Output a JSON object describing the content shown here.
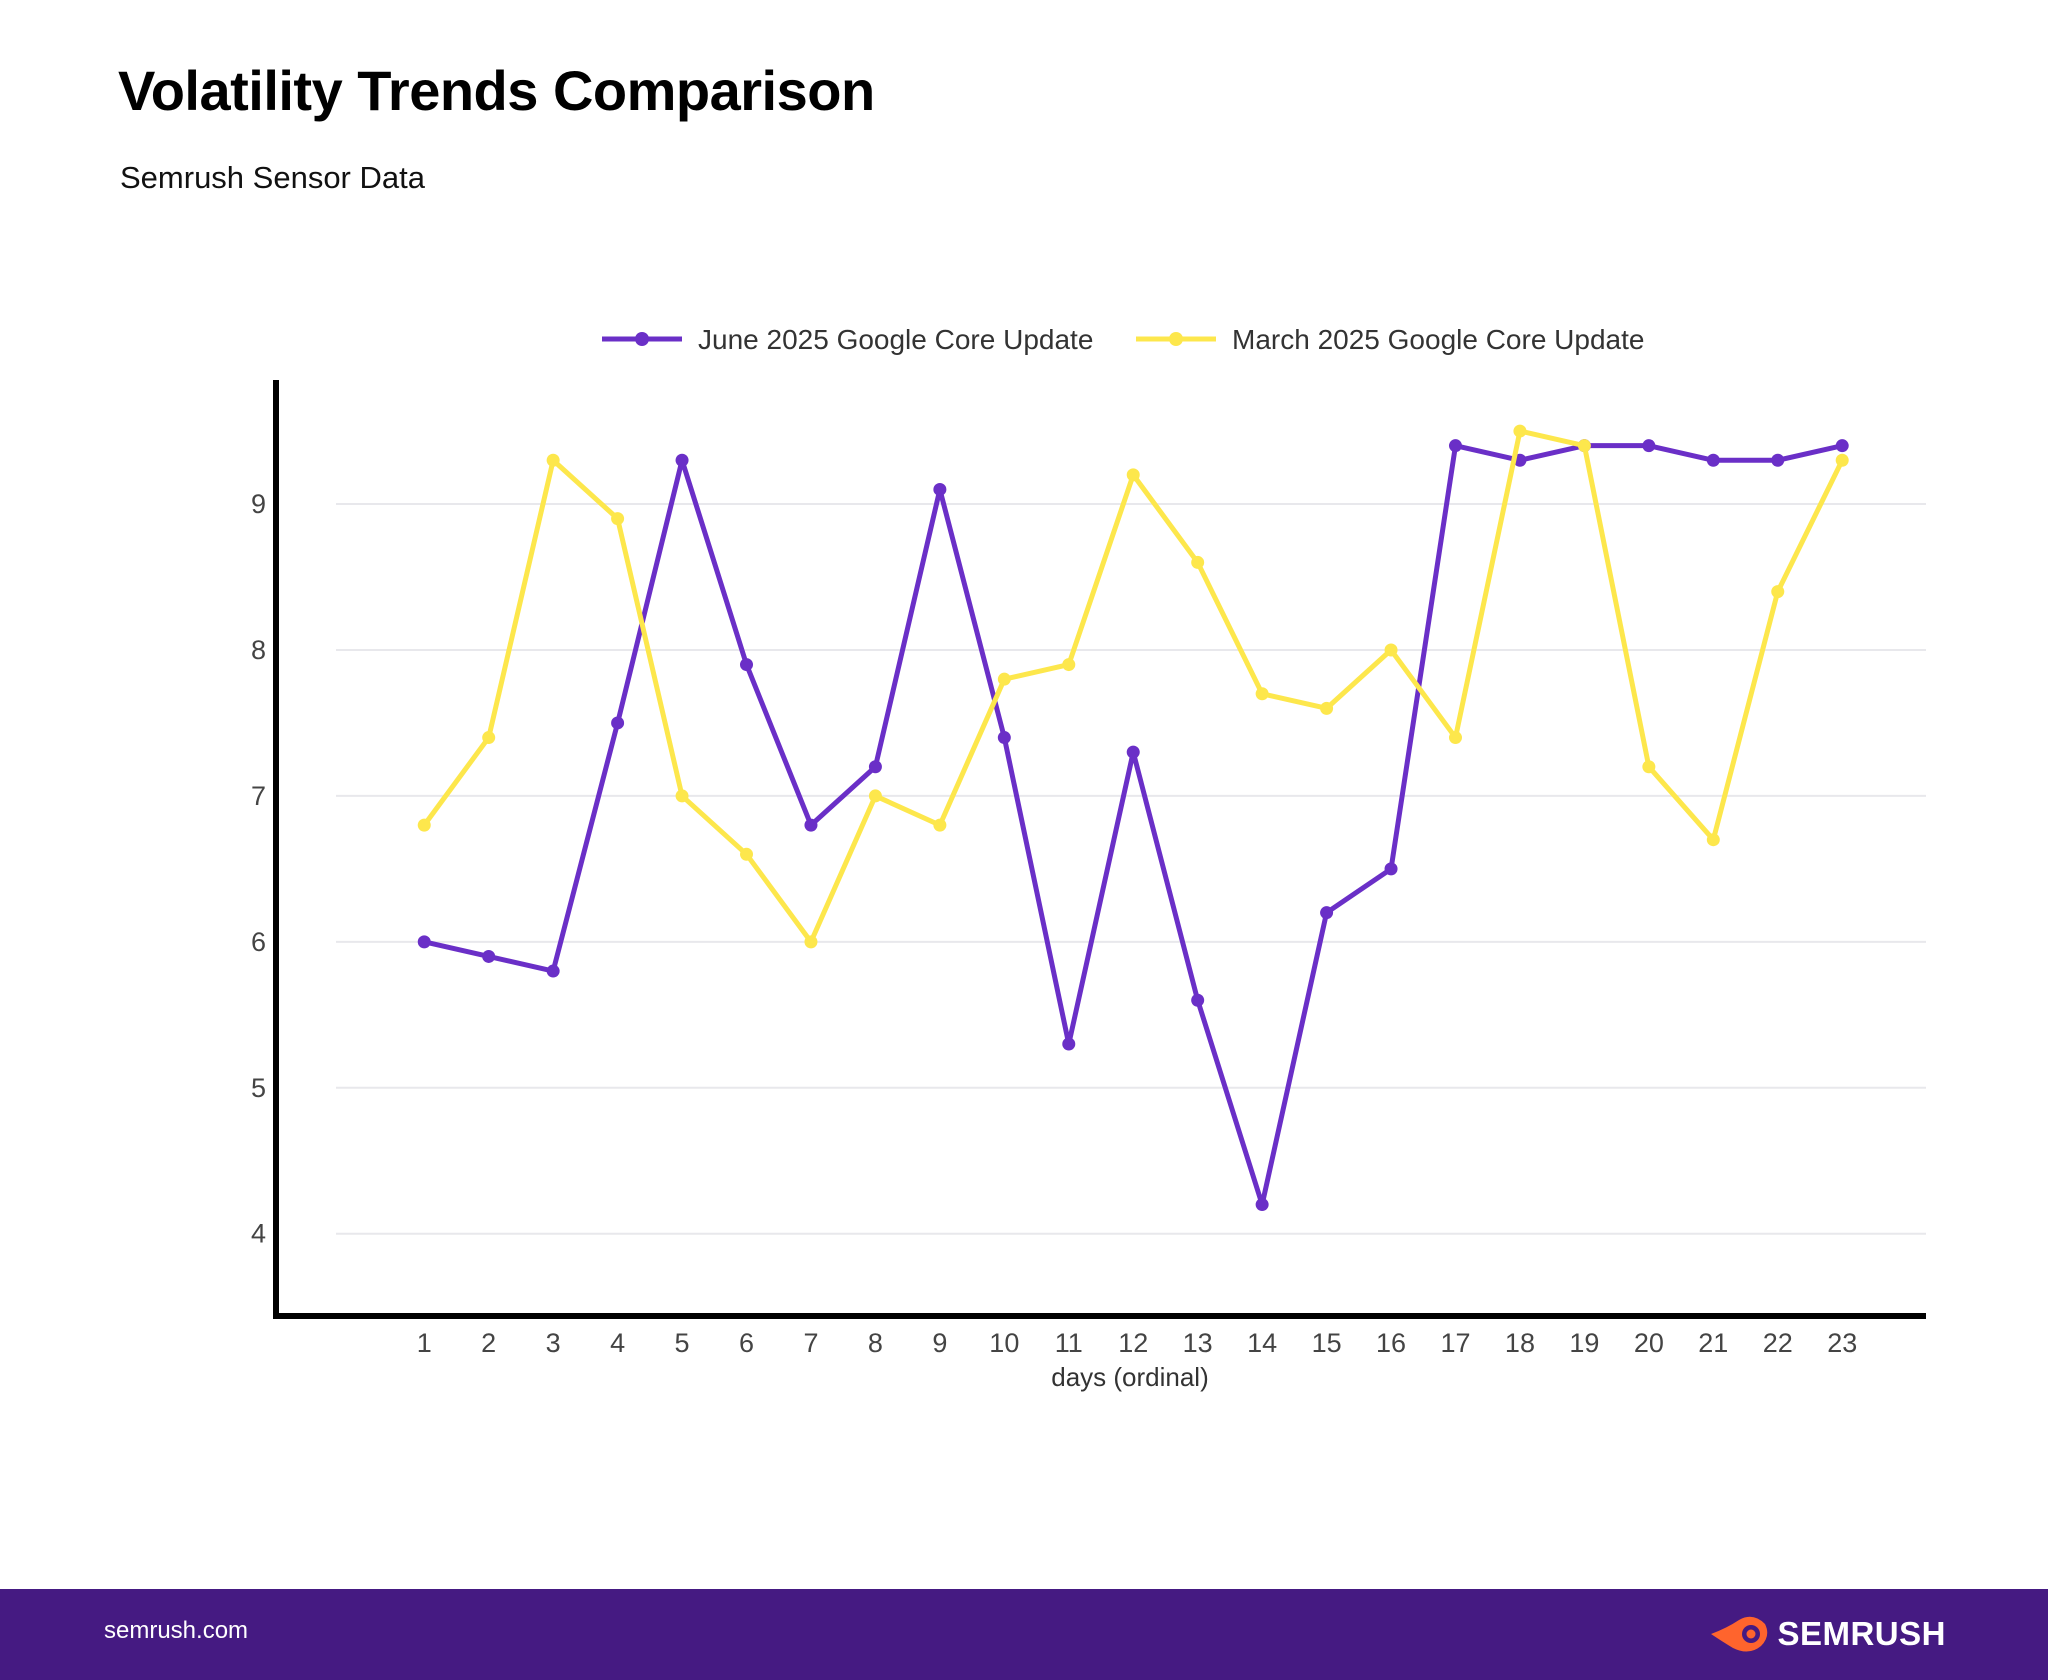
{
  "title": "Volatility Trends Comparison",
  "subtitle": "Semrush Sensor Data",
  "footer": {
    "url": "semrush.com",
    "brand": "SEMRUSH",
    "brand_color": "#ff642d"
  },
  "chart_data": {
    "type": "line",
    "xlabel": "days (ordinal)",
    "ylabel": "",
    "x": [
      1,
      2,
      3,
      4,
      5,
      6,
      7,
      8,
      9,
      10,
      11,
      12,
      13,
      14,
      15,
      16,
      17,
      18,
      19,
      20,
      21,
      22,
      23
    ],
    "xlim": [
      -1.3,
      24.3
    ],
    "ylim": [
      3.45,
      9.85
    ],
    "yticks": [
      4,
      5,
      6,
      7,
      8,
      9
    ],
    "grid": "horizontal",
    "legend": "top-center",
    "series": [
      {
        "name": "June 2025 Google Core Update",
        "color": "#6a2fc7",
        "values": [
          6.0,
          5.9,
          5.8,
          7.5,
          9.3,
          7.9,
          6.8,
          7.2,
          9.1,
          7.4,
          5.3,
          7.3,
          5.6,
          4.2,
          6.2,
          6.5,
          9.4,
          9.3,
          9.4,
          9.4,
          9.3,
          9.3,
          9.4
        ]
      },
      {
        "name": "March 2025 Google Core Update",
        "color": "#fde74c",
        "values": [
          6.8,
          7.4,
          9.3,
          8.9,
          7.0,
          6.6,
          6.0,
          7.0,
          6.8,
          7.8,
          7.9,
          9.2,
          8.6,
          7.7,
          7.6,
          8.0,
          7.4,
          9.5,
          9.4,
          7.2,
          6.7,
          8.4,
          9.3
        ]
      }
    ]
  }
}
